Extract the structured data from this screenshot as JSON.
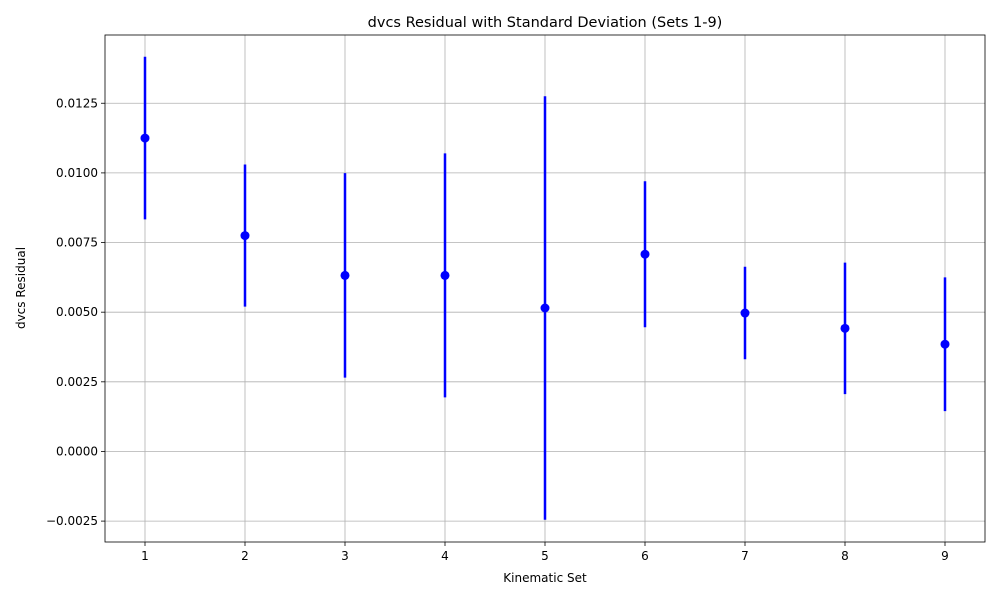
{
  "chart_data": {
    "type": "scatter",
    "title": "dvcs Residual with Standard Deviation (Sets 1-9)",
    "xlabel": "Kinematic Set",
    "ylabel": "dvcs Residual",
    "xlim": [
      0.6,
      9.4
    ],
    "ylim": [
      -0.00325,
      0.01495
    ],
    "grid": true,
    "x_ticks": [
      1,
      2,
      3,
      4,
      5,
      6,
      7,
      8,
      9
    ],
    "x_tick_labels": [
      "1",
      "2",
      "3",
      "4",
      "5",
      "6",
      "7",
      "8",
      "9"
    ],
    "y_ticks": [
      -0.0025,
      0.0,
      0.0025,
      0.005,
      0.0075,
      0.01,
      0.0125
    ],
    "y_tick_labels": [
      "−0.0025",
      "0.0000",
      "0.0025",
      "0.0050",
      "0.0075",
      "0.0100",
      "0.0125"
    ],
    "color": "#0000ff",
    "series": [
      {
        "x": [
          1,
          2,
          3,
          4,
          5,
          6,
          7,
          8,
          9
        ],
        "y": [
          0.01125,
          0.00775,
          0.00632,
          0.00632,
          0.00515,
          0.00708,
          0.00497,
          0.00442,
          0.00385
        ],
        "yerr": [
          0.00292,
          0.00255,
          0.00367,
          0.00438,
          0.0076,
          0.00262,
          0.00166,
          0.00236,
          0.0024
        ]
      }
    ]
  }
}
